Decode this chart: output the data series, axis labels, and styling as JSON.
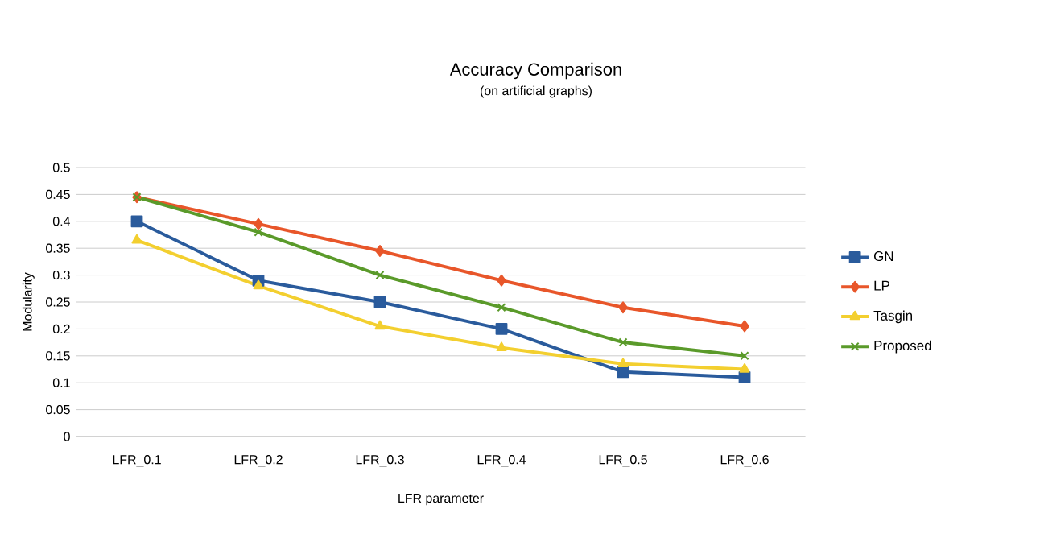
{
  "chart_data": {
    "type": "line",
    "title": "Accuracy Comparison",
    "subtitle": "(on artificial graphs)",
    "xlabel": "LFR parameter",
    "ylabel": "Modularity",
    "categories": [
      "LFR_0.1",
      "LFR_0.2",
      "LFR_0.3",
      "LFR_0.4",
      "LFR_0.5",
      "LFR_0.6"
    ],
    "series": [
      {
        "name": "GN",
        "color": "#2a5b9c",
        "marker": "square",
        "values": [
          0.4,
          0.29,
          0.25,
          0.2,
          0.12,
          0.11
        ]
      },
      {
        "name": "LP",
        "color": "#e8562a",
        "marker": "diamond",
        "values": [
          0.445,
          0.395,
          0.345,
          0.29,
          0.24,
          0.205
        ]
      },
      {
        "name": "Tasgin",
        "color": "#f3cf2f",
        "marker": "triangle",
        "values": [
          0.365,
          0.28,
          0.205,
          0.165,
          0.135,
          0.125
        ]
      },
      {
        "name": "Proposed",
        "color": "#5a9a2a",
        "marker": "cross",
        "values": [
          0.445,
          0.38,
          0.3,
          0.24,
          0.175,
          0.15
        ]
      }
    ],
    "ylim": [
      0,
      0.5
    ],
    "yticks": [
      0,
      0.05,
      0.1,
      0.15,
      0.2,
      0.25,
      0.3,
      0.35,
      0.4,
      0.45,
      0.5
    ],
    "grid": "y",
    "legend": "right"
  }
}
